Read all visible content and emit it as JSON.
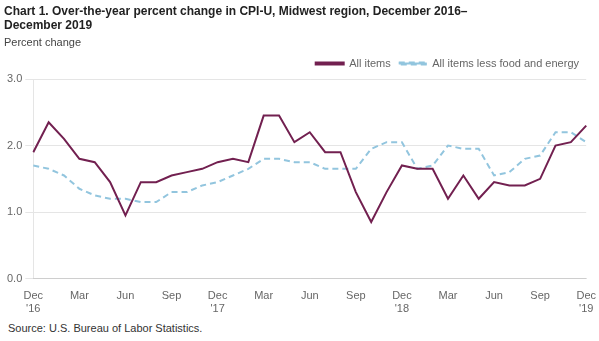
{
  "chart_data": {
    "type": "line",
    "title": "Chart 1. Over-the-year percent change in CPI-U, Midwest region, December 2016–\nDecember 2019",
    "subtitle": "Percent change",
    "annotations": [
      "Source: U.S. Bureau of Labor Statistics."
    ],
    "categories": [
      "Dec\n'16",
      null,
      null,
      "Mar",
      null,
      null,
      "Jun",
      null,
      null,
      "Sep",
      null,
      null,
      "Dec\n'17",
      null,
      null,
      "Mar",
      null,
      null,
      "Jun",
      null,
      null,
      "Sep",
      null,
      null,
      "Dec\n'18",
      null,
      null,
      "Mar",
      null,
      null,
      "Jun",
      null,
      null,
      "Sep",
      null,
      null,
      "Dec\n'19"
    ],
    "series": [
      {
        "name": "All items",
        "color": "#722050",
        "line_style": "solid",
        "values": [
          1.9,
          2.35,
          2.1,
          1.8,
          1.75,
          1.45,
          0.95,
          1.45,
          1.45,
          1.55,
          1.6,
          1.65,
          1.75,
          1.8,
          1.75,
          2.45,
          2.45,
          2.05,
          2.2,
          1.9,
          1.9,
          1.3,
          0.85,
          1.3,
          1.7,
          1.65,
          1.65,
          1.2,
          1.55,
          1.2,
          1.45,
          1.4,
          1.4,
          1.5,
          2.0,
          2.05,
          2.3
        ]
      },
      {
        "name": "All items less food and energy",
        "color": "#92C5DE",
        "line_style": "dashed",
        "values": [
          1.7,
          1.65,
          1.55,
          1.35,
          1.25,
          1.2,
          1.2,
          1.15,
          1.15,
          1.3,
          1.3,
          1.4,
          1.45,
          1.55,
          1.65,
          1.8,
          1.8,
          1.75,
          1.75,
          1.65,
          1.65,
          1.65,
          1.95,
          2.05,
          2.05,
          1.65,
          1.7,
          2.0,
          1.95,
          1.95,
          1.55,
          1.6,
          1.8,
          1.85,
          2.2,
          2.2,
          2.05
        ]
      }
    ],
    "ylim": [
      0.0,
      3.0
    ],
    "yticks": [
      {
        "value": 0.0,
        "label": "0.0"
      },
      {
        "value": 1.0,
        "label": "1.0"
      },
      {
        "value": 2.0,
        "label": "2.0"
      },
      {
        "value": 3.0,
        "label": "3.0"
      }
    ],
    "grid": "y",
    "legend": "upper right"
  }
}
